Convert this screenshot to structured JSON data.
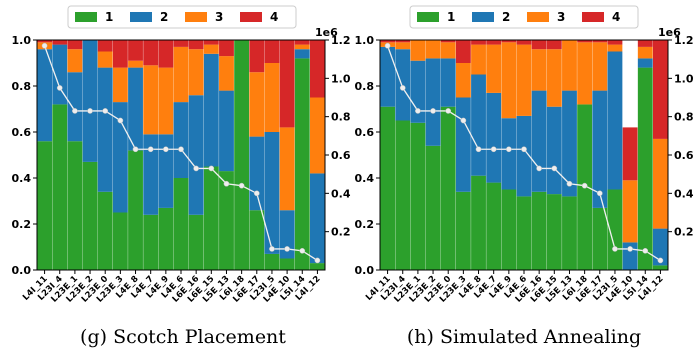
{
  "legend": [
    {
      "label": "1",
      "color": "#2ca02c"
    },
    {
      "label": "2",
      "color": "#1f77b4"
    },
    {
      "label": "3",
      "color": "#ff7f0e"
    },
    {
      "label": "4",
      "color": "#d62728"
    }
  ],
  "chart_data": [
    {
      "type": "bar",
      "title": "",
      "caption": "(g) Scotch Placement",
      "categories": [
        "L4I_11",
        "L23I_4",
        "L23E_1",
        "L23E_2",
        "L23E_0",
        "L23E_3",
        "L4E_8",
        "L4E_7",
        "L4E_9",
        "L4E_6",
        "L6E_16",
        "L6E_15",
        "L5E_13",
        "L6I_18",
        "L6E_17",
        "L23I_5",
        "L4E_10",
        "L5I_14",
        "L4I_12"
      ],
      "stack_order": [
        "1",
        "2",
        "3",
        "4"
      ],
      "series": [
        {
          "name": "1",
          "values": [
            0.56,
            0.72,
            0.56,
            0.47,
            0.34,
            0.25,
            0.52,
            0.24,
            0.27,
            0.4,
            0.24,
            0.45,
            0.43,
            1.0,
            0.26,
            0.07,
            0.05,
            0.92,
            0.03
          ]
        },
        {
          "name": "2",
          "values": [
            0.4,
            0.26,
            0.3,
            0.53,
            0.54,
            0.48,
            0.36,
            0.35,
            0.32,
            0.33,
            0.52,
            0.49,
            0.35,
            0.0,
            0.32,
            0.53,
            0.21,
            0.04,
            0.39
          ]
        },
        {
          "name": "3",
          "values": [
            0.03,
            0.0,
            0.1,
            0.0,
            0.07,
            0.15,
            0.03,
            0.3,
            0.29,
            0.24,
            0.2,
            0.04,
            0.15,
            0.0,
            0.28,
            0.3,
            0.36,
            0.02,
            0.33
          ]
        },
        {
          "name": "4",
          "values": [
            0.01,
            0.02,
            0.04,
            0.0,
            0.05,
            0.12,
            0.09,
            0.11,
            0.12,
            0.03,
            0.04,
            0.02,
            0.07,
            0.0,
            0.14,
            0.1,
            0.38,
            0.02,
            0.25
          ]
        }
      ],
      "line": {
        "values": [
          1170000,
          950000,
          830000,
          830000,
          830000,
          780000,
          630000,
          630000,
          630000,
          630000,
          530000,
          530000,
          450000,
          440000,
          400000,
          110000,
          110000,
          100000,
          50000
        ]
      },
      "ylim": [
        0,
        1.0
      ],
      "yticks": [
        "0.0",
        "0.2",
        "0.4",
        "0.6",
        "0.8",
        "1.0"
      ],
      "y2lim": [
        0,
        1.2
      ],
      "y2ticks": [
        "0.2",
        "0.4",
        "0.6",
        "0.8",
        "1.0",
        "1.2"
      ],
      "y2_offset_label": "1e6"
    },
    {
      "type": "bar",
      "title": "",
      "caption": "(h) Simulated Annealing",
      "categories": [
        "L4I_11",
        "L23I_4",
        "L23E_1",
        "L23E_2",
        "L23E_0",
        "L23E_3",
        "L4E_8",
        "L4E_7",
        "L4E_9",
        "L4E_6",
        "L6E_16",
        "L6E_15",
        "L5E_13",
        "L6I_18",
        "L6E_17",
        "L23I_5",
        "L4E_10",
        "L5I_14",
        "L4I_12"
      ],
      "stack_order": [
        "1",
        "2",
        "3",
        "4"
      ],
      "series": [
        {
          "name": "1",
          "values": [
            0.71,
            0.65,
            0.64,
            0.54,
            0.71,
            0.34,
            0.41,
            0.38,
            0.35,
            0.32,
            0.34,
            0.33,
            0.32,
            0.72,
            0.27,
            0.35,
            0.0,
            0.88,
            0.02
          ]
        },
        {
          "name": "2",
          "values": [
            0.26,
            0.31,
            0.27,
            0.38,
            0.21,
            0.41,
            0.44,
            0.39,
            0.31,
            0.35,
            0.44,
            0.38,
            0.46,
            0.0,
            0.51,
            0.6,
            0.12,
            0.04,
            0.16
          ]
        },
        {
          "name": "3",
          "values": [
            0.02,
            0.03,
            0.09,
            0.08,
            0.07,
            0.15,
            0.13,
            0.21,
            0.33,
            0.31,
            0.18,
            0.25,
            0.22,
            0.27,
            0.21,
            0.03,
            0.27,
            0.05,
            0.39
          ]
        },
        {
          "name": "4",
          "values": [
            0.01,
            0.01,
            0.0,
            0.0,
            0.01,
            0.1,
            0.02,
            0.02,
            0.01,
            0.02,
            0.04,
            0.04,
            0.0,
            0.01,
            0.01,
            0.02,
            0.23,
            0.03,
            0.43
          ]
        }
      ],
      "line": {
        "values": [
          1170000,
          950000,
          830000,
          830000,
          830000,
          780000,
          630000,
          630000,
          630000,
          630000,
          530000,
          530000,
          450000,
          440000,
          400000,
          110000,
          110000,
          100000,
          50000
        ]
      },
      "ylim": [
        0,
        1.0
      ],
      "yticks": [
        "0.0",
        "0.2",
        "0.4",
        "0.6",
        "0.8",
        "1.0"
      ],
      "y2lim": [
        0,
        1.2
      ],
      "y2ticks": [
        "0.2",
        "0.4",
        "0.6",
        "0.8",
        "1.0",
        "1.2"
      ],
      "y2_offset_label": "1e6"
    }
  ]
}
